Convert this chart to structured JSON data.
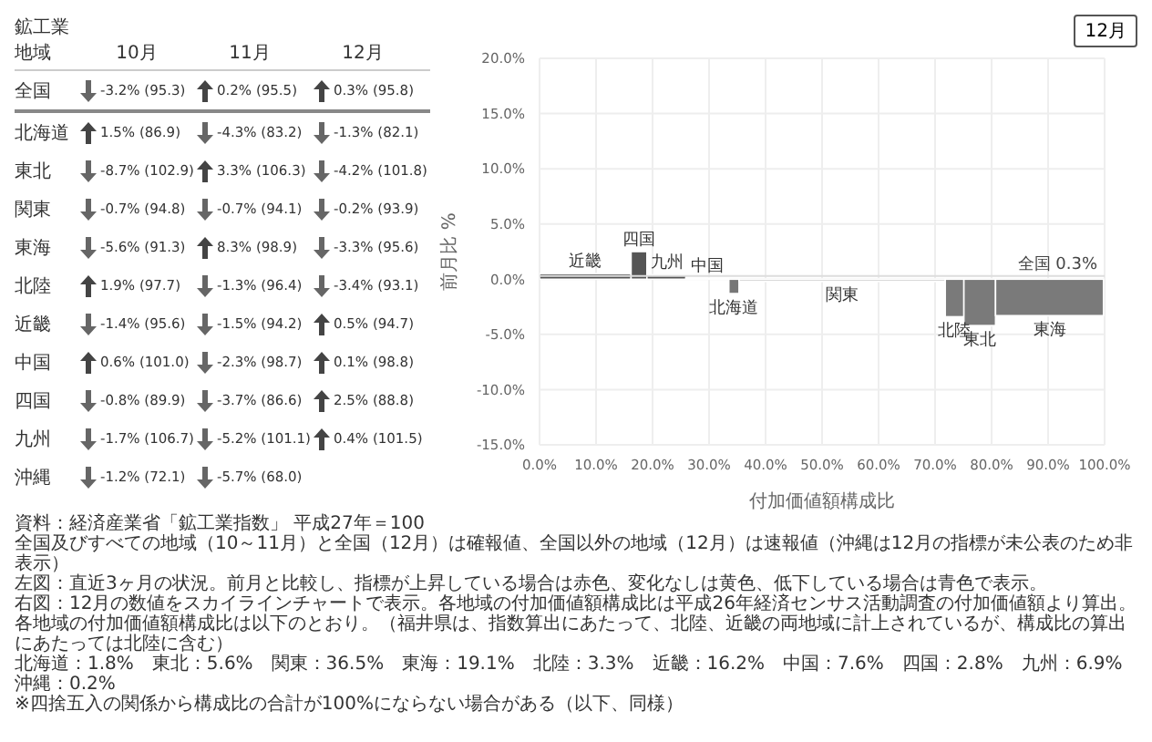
{
  "chart_data": [
    {
      "type": "other",
      "title": "鉱工業",
      "ylabel": "地域",
      "categories": [
        "10月",
        "11月",
        "12月"
      ],
      "y_categories": [
        "全国",
        "北海道",
        "東北",
        "関東",
        "東海",
        "北陸",
        "近畿",
        "中国",
        "四国",
        "九州",
        "沖縄"
      ],
      "cell_labels": [
        [
          "-3.2% (95.3)",
          "0.2% (95.5)",
          "0.3% (95.8)"
        ],
        [
          "1.5% (86.9)",
          "-4.3% (83.2)",
          "-1.3% (82.1)"
        ],
        [
          "-8.7% (102.9)",
          "3.3% (106.3)",
          "-4.2% (101.8)"
        ],
        [
          "-0.7% (94.8)",
          "-0.7% (94.1)",
          "-0.2% (93.9)"
        ],
        [
          "-5.6% (91.3)",
          "8.3% (98.9)",
          "-3.3% (95.6)"
        ],
        [
          "1.9% (97.7)",
          "-1.3% (96.4)",
          "-3.4% (93.1)"
        ],
        [
          "-1.4% (95.6)",
          "-1.5% (94.2)",
          "0.5% (94.7)"
        ],
        [
          "0.6% (101.0)",
          "-2.3% (98.7)",
          "0.1% (98.8)"
        ],
        [
          "-0.8% (89.9)",
          "-3.7% (86.6)",
          "2.5% (88.8)"
        ],
        [
          "-1.7% (106.7)",
          "-5.2% (101.1)",
          "0.4% (101.5)"
        ],
        [
          "-1.2% (72.1)",
          "-5.7% (68.0)",
          null
        ]
      ]
    },
    {
      "type": "histogram",
      "xlabel": "付加価値額構成比",
      "ylabel": "前月比 %",
      "bins": [
        0,
        16.2,
        19.0,
        25.9,
        33.5,
        35.3,
        71.8,
        75.1,
        80.7,
        99.8
      ],
      "values": [
        0.5,
        2.5,
        0.4,
        0.1,
        -1.3,
        -0.2,
        -3.4,
        -4.2,
        -3.3
      ],
      "colors": [
        "#555555",
        "#555555",
        "#555555",
        "#d9d9d9",
        "#777777",
        "#d0d0d0",
        "#7a7a7a",
        "#7a7a7a",
        "#7a7a7a"
      ],
      "xlim": [
        0,
        100
      ],
      "ylim": [
        -15,
        20
      ],
      "xticks": [
        {
          "value": 0,
          "label": "0.0%"
        },
        {
          "value": 10,
          "label": "10.0%"
        },
        {
          "value": 20,
          "label": "20.0%"
        },
        {
          "value": 30,
          "label": "30.0%"
        },
        {
          "value": 40,
          "label": "40.0%"
        },
        {
          "value": 50,
          "label": "50.0%"
        },
        {
          "value": 60,
          "label": "60.0%"
        },
        {
          "value": 70,
          "label": "70.0%"
        },
        {
          "value": 80,
          "label": "80.0%"
        },
        {
          "value": 90,
          "label": "90.0%"
        },
        {
          "value": 100,
          "label": "100.0%"
        }
      ],
      "yticks": [
        {
          "value": -15,
          "label": "-15.0%"
        },
        {
          "value": -10,
          "label": "-10.0%"
        },
        {
          "value": -5,
          "label": "-5.0%"
        },
        {
          "value": 0,
          "label": "0.0%"
        },
        {
          "value": 5,
          "label": "5.0%"
        },
        {
          "value": 10,
          "label": "10.0%"
        },
        {
          "value": 15,
          "label": "15.0%"
        },
        {
          "value": 20,
          "label": "20.0%"
        }
      ],
      "grid": true,
      "ref_lines": [
        {
          "axis": "y",
          "value": 0.3,
          "label": "全国 0.3%",
          "color": "#dddddd"
        }
      ],
      "annotations": [
        "12月",
        {
          "text": "近畿",
          "x": 8.1,
          "y": 0.5
        },
        {
          "text": "四国",
          "x": 17.6,
          "y": 2.5
        },
        {
          "text": "九州",
          "x": 22.5,
          "y": 0.4
        },
        {
          "text": "中国",
          "x": 29.7,
          "y": 0.1
        },
        {
          "text": "北海道",
          "x": 34.4,
          "y": -1.3
        },
        {
          "text": "関東",
          "x": 53.5,
          "y": -0.2
        },
        {
          "text": "北陸",
          "x": 73.4,
          "y": -3.4
        },
        {
          "text": "東北",
          "x": 77.9,
          "y": -4.2
        },
        {
          "text": "東海",
          "x": 90.3,
          "y": -3.3
        },
        "資料：経済産業省「鉱工業指数」 平成27年＝100",
        "全国及びすべての地域（10～11月）と全国（12月）は確報値、全国以外の地域（12月）は速報値（沖縄は12月の指標が未公表のため非表示）",
        "左図：直近3ヶ月の状況。前月と比較し、指標が上昇している場合は赤色、変化なしは黄色、低下している場合は青色で表示。",
        "右図：12月の数値をスカイラインチャートで表示。各地域の付加価値額構成比は平成26年経済センサス活動調査の付加価値額より算出。",
        "各地域の付加価値額構成比は以下のとおり。（福井県は、指数算出にあたって、北陸、近畿の両地域に計上されているが、構成比の算出にあたっては北陸に含む）",
        "北海道：1.8%　東北：5.6%　関東：36.5%　東海：19.1%　北陸：3.3%　近畿：16.2%　中国：7.6%　四国：2.8%　九州：6.9%　沖縄：0.2%",
        "※四捨五入の関係から構成比の合計が100%にならない場合がある（以下、同様）"
      ]
    }
  ]
}
